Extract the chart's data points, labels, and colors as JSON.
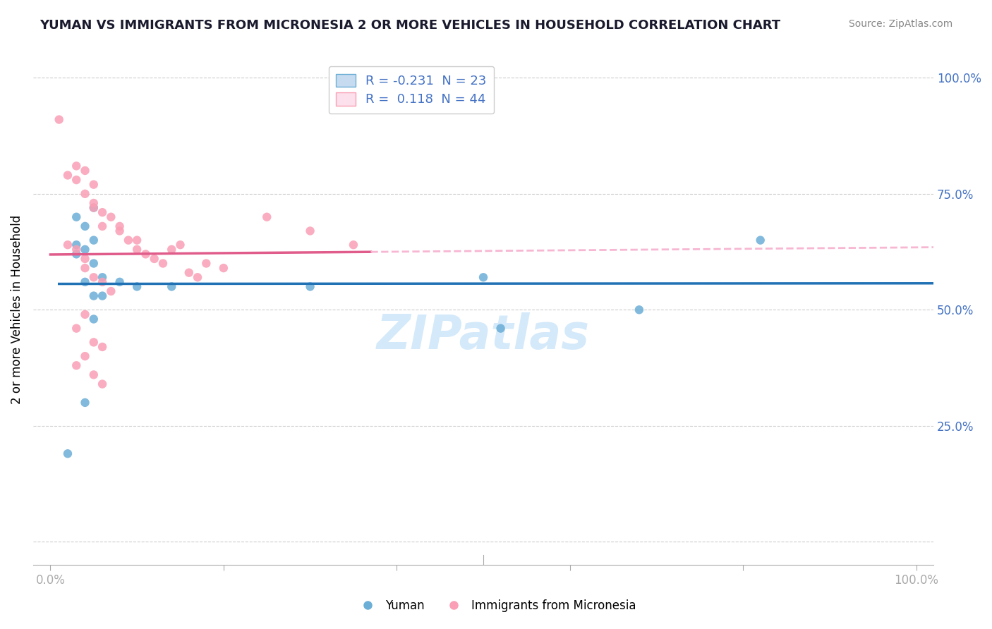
{
  "title": "YUMAN VS IMMIGRANTS FROM MICRONESIA 2 OR MORE VEHICLES IN HOUSEHOLD CORRELATION CHART",
  "source": "Source: ZipAtlas.com",
  "xlabel": "",
  "ylabel": "2 or more Vehicles in Household",
  "legend_label1": "Yuman",
  "legend_label2": "Immigrants from Micronesia",
  "R1": -0.231,
  "N1": 23,
  "R2": 0.118,
  "N2": 44,
  "color1": "#6baed6",
  "color2": "#fa9fb5",
  "color1_light": "#c6dbef",
  "color2_light": "#fce0eb",
  "line1_color": "#2171b5",
  "line2_color": "#e05c8a",
  "line2_dash_color": "#f7b6d2",
  "xmin": 0.0,
  "xmax": 1.0,
  "ymin": 0.0,
  "ymax": 1.0,
  "yticks": [
    0.0,
    0.25,
    0.5,
    0.75,
    1.0
  ],
  "ytick_labels": [
    "",
    "25.0%",
    "50.0%",
    "75.0%",
    "100.0%"
  ],
  "xtick_labels": [
    "0.0%",
    "",
    "",
    "",
    "",
    "100.0%"
  ],
  "blue_x": [
    0.02,
    0.03,
    0.04,
    0.05,
    0.04,
    0.03,
    0.05,
    0.05,
    0.06,
    0.08,
    0.1,
    0.14,
    0.3,
    0.5,
    0.52,
    0.68,
    0.82,
    0.03,
    0.04,
    0.05,
    0.06,
    0.05,
    0.04
  ],
  "blue_y": [
    0.19,
    0.7,
    0.68,
    0.72,
    0.63,
    0.64,
    0.65,
    0.6,
    0.57,
    0.56,
    0.55,
    0.55,
    0.55,
    0.57,
    0.46,
    0.5,
    0.65,
    0.62,
    0.56,
    0.53,
    0.53,
    0.48,
    0.3
  ],
  "pink_x": [
    0.01,
    0.02,
    0.03,
    0.03,
    0.04,
    0.04,
    0.05,
    0.05,
    0.05,
    0.06,
    0.06,
    0.07,
    0.08,
    0.08,
    0.09,
    0.1,
    0.1,
    0.11,
    0.12,
    0.13,
    0.14,
    0.15,
    0.16,
    0.17,
    0.18,
    0.2,
    0.25,
    0.3,
    0.35,
    0.02,
    0.03,
    0.04,
    0.04,
    0.05,
    0.06,
    0.07,
    0.04,
    0.03,
    0.05,
    0.06,
    0.04,
    0.03,
    0.05,
    0.06
  ],
  "pink_y": [
    0.91,
    0.79,
    0.81,
    0.78,
    0.8,
    0.75,
    0.77,
    0.73,
    0.72,
    0.71,
    0.68,
    0.7,
    0.68,
    0.67,
    0.65,
    0.65,
    0.63,
    0.62,
    0.61,
    0.6,
    0.63,
    0.64,
    0.58,
    0.57,
    0.6,
    0.59,
    0.7,
    0.67,
    0.64,
    0.64,
    0.63,
    0.61,
    0.59,
    0.57,
    0.56,
    0.54,
    0.49,
    0.46,
    0.43,
    0.42,
    0.4,
    0.38,
    0.36,
    0.34
  ]
}
